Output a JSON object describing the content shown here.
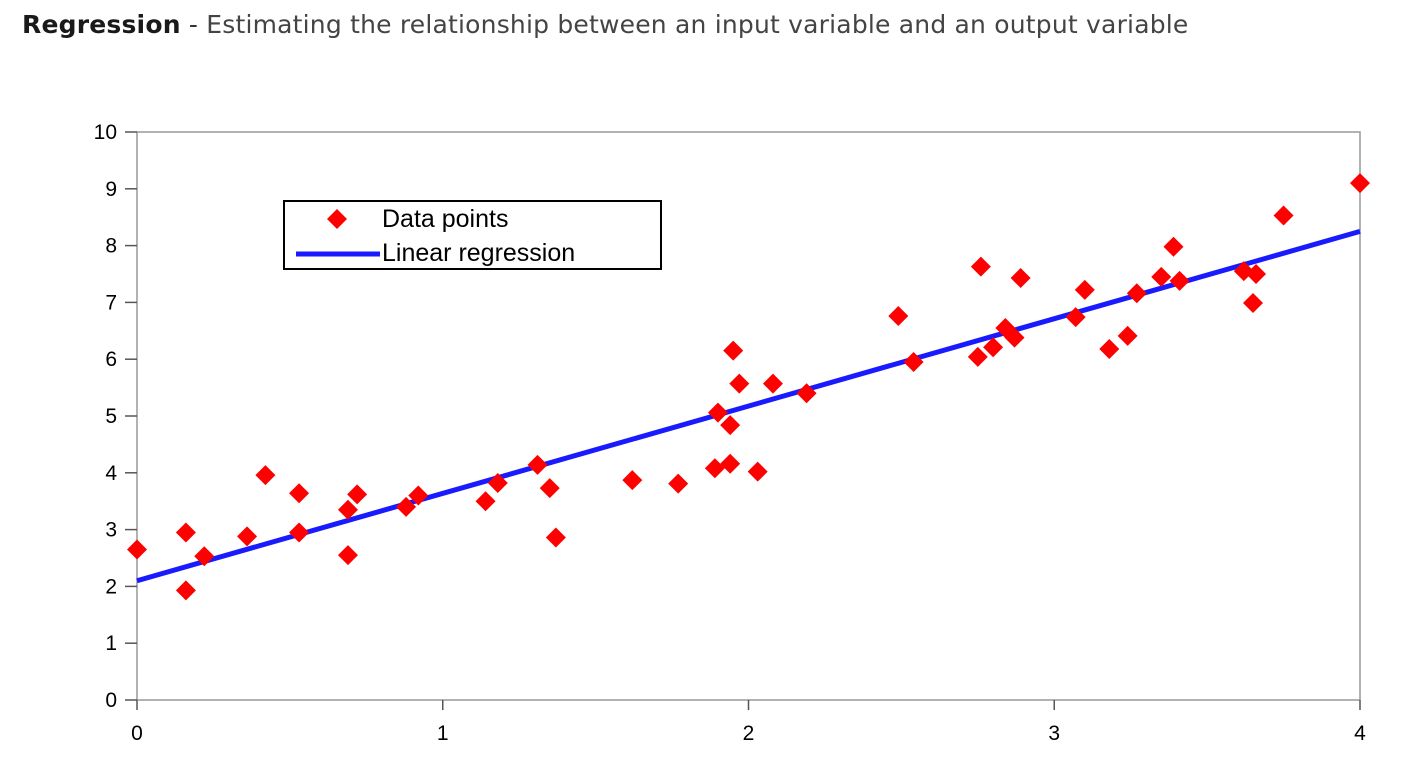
{
  "heading": {
    "term": "Regression",
    "separator": " - ",
    "description": "Estimating the relationship between an input variable and an output variable"
  },
  "chart_data": {
    "type": "scatter",
    "xlim": [
      0,
      4
    ],
    "ylim": [
      0,
      10
    ],
    "x_ticks": [
      "0",
      "1",
      "2",
      "3",
      "4"
    ],
    "y_ticks": [
      "0",
      "1",
      "2",
      "3",
      "4",
      "5",
      "6",
      "7",
      "8",
      "9",
      "10"
    ],
    "grid": false,
    "legend_placement": "top-left",
    "colors": {
      "points": "#ff0000",
      "line": "#1a1aff",
      "axis": "#999999"
    },
    "series": [
      {
        "name": "Data points",
        "kind": "scatter",
        "points": [
          [
            0.0,
            2.65
          ],
          [
            0.16,
            1.93
          ],
          [
            0.16,
            2.95
          ],
          [
            0.22,
            2.53
          ],
          [
            0.36,
            2.88
          ],
          [
            0.42,
            3.96
          ],
          [
            0.53,
            2.95
          ],
          [
            0.53,
            3.64
          ],
          [
            0.69,
            3.35
          ],
          [
            0.69,
            2.55
          ],
          [
            0.72,
            3.62
          ],
          [
            0.88,
            3.4
          ],
          [
            0.92,
            3.6
          ],
          [
            1.14,
            3.5
          ],
          [
            1.18,
            3.82
          ],
          [
            1.31,
            4.14
          ],
          [
            1.35,
            3.73
          ],
          [
            1.37,
            2.86
          ],
          [
            1.62,
            3.87
          ],
          [
            1.77,
            3.81
          ],
          [
            1.89,
            4.08
          ],
          [
            1.9,
            5.06
          ],
          [
            1.94,
            4.84
          ],
          [
            1.94,
            4.16
          ],
          [
            1.95,
            6.15
          ],
          [
            1.97,
            5.57
          ],
          [
            2.03,
            4.02
          ],
          [
            2.08,
            5.57
          ],
          [
            2.19,
            5.4
          ],
          [
            2.49,
            6.76
          ],
          [
            2.54,
            5.95
          ],
          [
            2.75,
            6.04
          ],
          [
            2.76,
            7.63
          ],
          [
            2.8,
            6.21
          ],
          [
            2.84,
            6.55
          ],
          [
            2.87,
            6.38
          ],
          [
            2.89,
            7.43
          ],
          [
            3.07,
            6.74
          ],
          [
            3.1,
            7.22
          ],
          [
            3.18,
            6.18
          ],
          [
            3.24,
            6.41
          ],
          [
            3.27,
            7.16
          ],
          [
            3.35,
            7.45
          ],
          [
            3.39,
            7.98
          ],
          [
            3.41,
            7.38
          ],
          [
            3.62,
            7.55
          ],
          [
            3.65,
            6.99
          ],
          [
            3.66,
            7.5
          ],
          [
            3.75,
            8.53
          ],
          [
            4.0,
            9.1
          ]
        ]
      },
      {
        "name": "Linear regression",
        "kind": "line",
        "points": [
          [
            0,
            2.1
          ],
          [
            4,
            8.25
          ]
        ]
      }
    ]
  }
}
